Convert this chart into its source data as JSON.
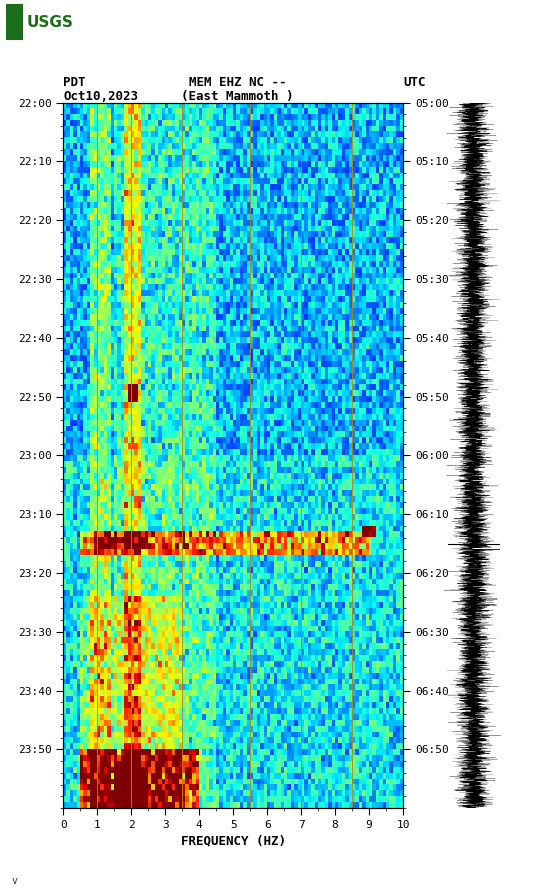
{
  "title_line1": "MEM EHZ NC --",
  "title_line2": "(East Mammoth )",
  "left_label": "PDT",
  "left_date": "Oct10,2023",
  "right_label": "UTC",
  "freq_label": "FREQUENCY (HZ)",
  "x_ticks": [
    0,
    1,
    2,
    3,
    4,
    5,
    6,
    7,
    8,
    9,
    10
  ],
  "left_yticks": [
    "22:00",
    "22:10",
    "22:20",
    "22:30",
    "22:40",
    "22:50",
    "23:00",
    "23:10",
    "23:20",
    "23:30",
    "23:40",
    "23:50"
  ],
  "right_yticks": [
    "05:00",
    "05:10",
    "05:20",
    "05:30",
    "05:40",
    "05:50",
    "06:00",
    "06:10",
    "06:20",
    "06:30",
    "06:40",
    "06:50"
  ],
  "nrows": 120,
  "ncols": 100,
  "bg_color": "#ffffff",
  "usgs_green": "#1a6e1a",
  "vertical_lines_freq": [
    1.0,
    2.0,
    3.5,
    5.5,
    7.0,
    8.5
  ],
  "colormap": "jet",
  "vmin": 0.0,
  "vmax": 1.0
}
